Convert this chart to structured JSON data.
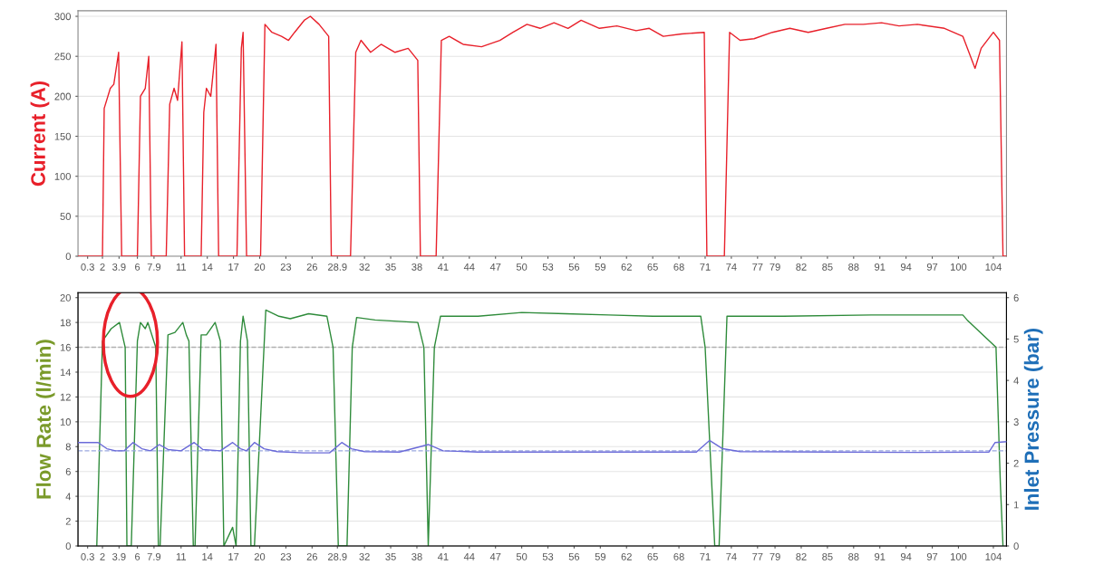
{
  "chart_data": [
    {
      "type": "line",
      "ylabel": "Current (A)",
      "xlim": [
        -0.8,
        105.5
      ],
      "ylim": [
        0,
        307
      ],
      "yticks": [
        0,
        50,
        100,
        150,
        200,
        250,
        300
      ],
      "xticks": [
        0.3,
        2,
        3.9,
        6,
        7.9,
        11,
        14,
        17,
        20,
        23,
        26,
        28.9,
        32,
        35,
        38,
        41,
        44,
        47,
        50,
        53,
        56,
        59,
        62,
        65,
        68,
        71,
        74,
        77,
        79,
        82,
        85,
        88,
        91,
        94,
        97,
        100,
        104
      ],
      "grid": "y",
      "marker": "none",
      "line_style": "solid",
      "series": [
        {
          "color": "#e8202a",
          "x": [
            -0.8,
            2.0,
            2.2,
            2.9,
            3.3,
            3.85,
            4.2,
            4.5,
            6.0,
            6.35,
            6.9,
            7.3,
            7.6,
            7.9,
            9.3,
            9.7,
            10.2,
            10.6,
            11.1,
            11.4,
            11.8,
            13.3,
            13.6,
            13.9,
            14.4,
            15.0,
            15.3,
            15.5,
            17.4,
            17.9,
            18.1,
            18.5,
            20.1,
            20.6,
            21.4,
            22.5,
            23.3,
            24.0,
            25.1,
            25.8,
            26.8,
            27.9,
            28.2,
            28.5,
            30.4,
            31.0,
            31.6,
            32.7,
            33.9,
            35.5,
            37.0,
            38.1,
            38.4,
            38.7,
            40.2,
            40.8,
            41.7,
            43.3,
            45.4,
            47.5,
            49.0,
            50.6,
            52.1,
            53.7,
            55.3,
            56.8,
            58.9,
            60.9,
            63.1,
            64.6,
            66.2,
            68.3,
            70.9,
            71.2,
            71.5,
            73.2,
            73.8,
            75.0,
            76.6,
            78.7,
            80.7,
            82.8,
            84.9,
            87.0,
            89.1,
            91.2,
            93.2,
            95.3,
            98.4,
            100.5,
            101.9,
            102.6,
            104.0,
            104.7,
            105.1,
            105.5
          ],
          "values": [
            0,
            0,
            185,
            210,
            215,
            255,
            0,
            0,
            0,
            200,
            210,
            250,
            0,
            0,
            0,
            190,
            210,
            195,
            268,
            0,
            0,
            0,
            180,
            210,
            200,
            265,
            0,
            0,
            0,
            260,
            280,
            0,
            0,
            290,
            280,
            275,
            270,
            280,
            295,
            300,
            290,
            275,
            0,
            0,
            0,
            255,
            270,
            255,
            265,
            255,
            260,
            245,
            0,
            0,
            0,
            270,
            275,
            265,
            262,
            270,
            280,
            290,
            285,
            292,
            285,
            295,
            285,
            288,
            282,
            285,
            275,
            278,
            280,
            0,
            0,
            0,
            280,
            270,
            272,
            280,
            285,
            280,
            285,
            290,
            290,
            292,
            288,
            290,
            285,
            275,
            235,
            260,
            280,
            270,
            0,
            0
          ]
        }
      ]
    },
    {
      "type": "line",
      "ylabel": "Flow Rate (l/min)",
      "y2label": "Inlet Pressure (bar)",
      "xlim": [
        -0.8,
        105.5
      ],
      "ylim": [
        0,
        20.4
      ],
      "yticks": [
        0,
        2,
        4,
        6,
        8,
        10,
        12,
        14,
        16,
        18,
        20
      ],
      "y2lim": [
        0,
        6.12
      ],
      "y2ticks": [
        0,
        1,
        2,
        3,
        4,
        5,
        6
      ],
      "xticks": [
        0.3,
        2,
        3.9,
        6,
        7.9,
        11,
        14,
        17,
        20,
        23,
        26,
        28.9,
        32,
        35,
        38,
        41,
        44,
        47,
        50,
        53,
        56,
        59,
        62,
        65,
        68,
        71,
        74,
        77,
        79,
        82,
        85,
        88,
        91,
        94,
        97,
        100,
        104
      ],
      "grid": "y",
      "marker": "none",
      "line_style": "solid",
      "ref_lines": [
        {
          "axis": "y",
          "value": 16,
          "color": "#b0b0b0",
          "line_style": "dashed"
        },
        {
          "axis": "y2",
          "value": 2.3,
          "color": "#9aa8e0",
          "line_style": "dashed"
        }
      ],
      "series": [
        {
          "color": "#2e8b3a",
          "x": [
            1.35,
            2.0,
            3.0,
            3.95,
            4.6,
            4.8,
            5.3,
            6.0,
            6.35,
            6.9,
            7.2,
            8.1,
            8.4,
            8.6,
            9.5,
            10.3,
            11.2,
            11.6,
            11.9,
            12.4,
            12.6,
            13.3,
            13.9,
            14.9,
            15.5,
            15.9,
            16.9,
            17.3,
            17.8,
            18.1,
            18.6,
            19.0,
            19.4,
            20.7,
            22.2,
            23.5,
            25.6,
            27.7,
            28.4,
            29.0,
            30.0,
            30.6,
            31.1,
            33.2,
            38.1,
            38.8,
            39.3,
            40.0,
            40.7,
            45.0,
            50.0,
            55.0,
            60.0,
            65.0,
            70.5,
            71.0,
            72.1,
            72.6,
            73.5,
            80.0,
            90.0,
            100.5,
            101.0,
            104.3,
            104.8,
            105.1
          ],
          "values": [
            0,
            16.5,
            17.5,
            18,
            16,
            0,
            0,
            16.5,
            18,
            17.5,
            18,
            16,
            0,
            0,
            17,
            17.2,
            18,
            17,
            16.5,
            0,
            0,
            17,
            17,
            18,
            16.5,
            0,
            1.5,
            0,
            16.5,
            18.5,
            16.5,
            0,
            0,
            19,
            18.5,
            18.3,
            18.7,
            18.5,
            16,
            0,
            0,
            16,
            18.4,
            18.2,
            18,
            16,
            0,
            16,
            18.5,
            18.5,
            18.8,
            18.7,
            18.6,
            18.5,
            18.5,
            16,
            0,
            0,
            18.5,
            18.5,
            18.6,
            18.6,
            18.2,
            16,
            5,
            0
          ]
        },
        {
          "color": "#6a6ad8",
          "axis": "y2",
          "x": [
            -0.8,
            1.5,
            2.5,
            3.5,
            4.5,
            5.5,
            6.5,
            7.5,
            8.5,
            9.5,
            11.0,
            12.5,
            13.5,
            15.5,
            16.9,
            17.8,
            18.5,
            19.4,
            20.5,
            22.0,
            25.0,
            28.0,
            29.4,
            30.5,
            32.0,
            36.0,
            39.3,
            41.0,
            45.0,
            55.0,
            65.0,
            70.0,
            71.5,
            73.0,
            75.0,
            85.0,
            95.0,
            103.5,
            104.2,
            105.5
          ],
          "values": [
            2.5,
            2.5,
            2.35,
            2.3,
            2.3,
            2.5,
            2.35,
            2.3,
            2.45,
            2.33,
            2.3,
            2.5,
            2.33,
            2.3,
            2.5,
            2.35,
            2.3,
            2.5,
            2.35,
            2.28,
            2.25,
            2.25,
            2.5,
            2.35,
            2.28,
            2.27,
            2.45,
            2.3,
            2.27,
            2.27,
            2.27,
            2.27,
            2.55,
            2.35,
            2.28,
            2.27,
            2.26,
            2.27,
            2.5,
            2.52
          ]
        }
      ]
    }
  ]
}
